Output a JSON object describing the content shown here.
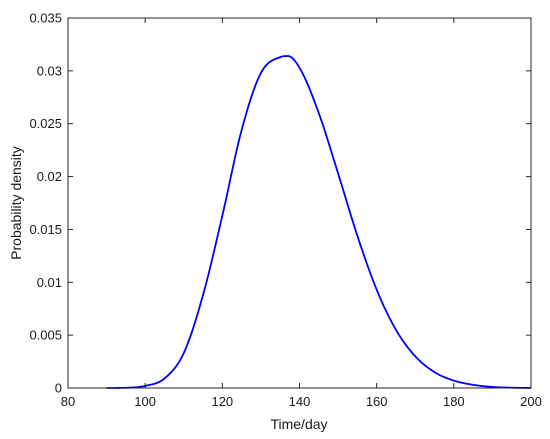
{
  "chart_data": {
    "type": "line",
    "title": "",
    "xlabel": "Time/day",
    "ylabel": "Probability density",
    "xlim": [
      80,
      200
    ],
    "ylim": [
      0,
      0.035
    ],
    "x_ticks": [
      "80",
      "100",
      "120",
      "140",
      "160",
      "180",
      "200"
    ],
    "y_ticks": [
      "0",
      "0.005",
      "0.01",
      "0.015",
      "0.02",
      "0.025",
      "0.03",
      "0.035"
    ],
    "grid": false,
    "series": [
      {
        "color": "#0000ff",
        "x": [
          90,
          95,
          100,
          105,
          110,
          115,
          120,
          125,
          130,
          135,
          137,
          140,
          145,
          150,
          155,
          160,
          165,
          170,
          175,
          180,
          185,
          190,
          195,
          200
        ],
        "y": [
          0.0,
          2e-05,
          0.0002,
          0.0009,
          0.0033,
          0.0088,
          0.0163,
          0.0244,
          0.0298,
          0.0313,
          0.0314,
          0.0303,
          0.026,
          0.0203,
          0.0144,
          0.0093,
          0.0055,
          0.003,
          0.0015,
          0.0007,
          0.0003,
          0.0001,
          3e-05,
          0.0
        ]
      }
    ]
  }
}
